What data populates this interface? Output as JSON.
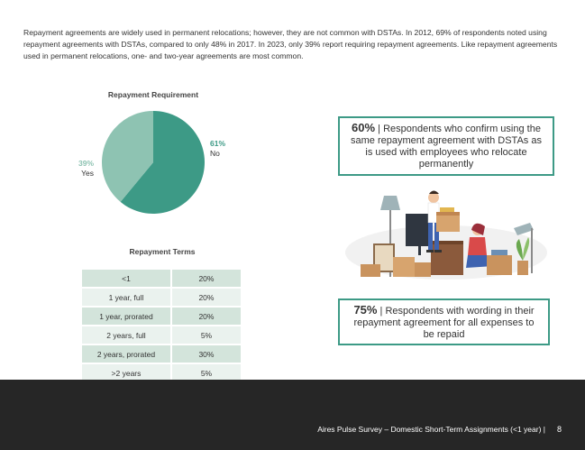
{
  "intro_text": "Repayment agreements are widely used in permanent relocations; however, they are not common with DSTAs. In 2012, 69% of respondents noted using repayment agreements with DSTAs, compared to only 48% in 2017. In 2023, only 39% report requiring repayment agreements. Like repayment agreements used in permanent relocations, one- and two-year agreements are most common.",
  "chart_data": [
    {
      "type": "pie",
      "title": "Repayment Requirement",
      "slices": [
        {
          "label": "No",
          "value": 61,
          "display": "61%",
          "color": "#3d9a86"
        },
        {
          "label": "Yes",
          "value": 39,
          "display": "39%",
          "color": "#8ec3b2"
        }
      ],
      "legend": "none"
    },
    {
      "type": "table",
      "title": "Repayment Terms",
      "rows": [
        {
          "term": "<1",
          "value": "20%"
        },
        {
          "term": "1 year, full",
          "value": "20%"
        },
        {
          "term": "1 year, prorated",
          "value": "20%"
        },
        {
          "term": "2 years, full",
          "value": "5%"
        },
        {
          "term": "2 years, prorated",
          "value": "30%"
        },
        {
          "term": ">2 years",
          "value": "5%"
        }
      ]
    }
  ],
  "callouts": [
    {
      "stat": "60%",
      "separator": "|",
      "text": "Respondents who confirm using the same repayment agreement with DSTAs as is used with employees who relocate permanently"
    },
    {
      "stat": "75%",
      "separator": "|",
      "text": "Respondents with wording in their repayment agreement for all expenses to be repaid"
    }
  ],
  "illustration": {
    "icon": "people-moving-boxes-illustration"
  },
  "footer": {
    "text": "Aires Pulse Survey – Domestic Short-Term Assignments (<1 year) |",
    "page": "8"
  },
  "colors": {
    "accent": "#3d9a86",
    "accent_light": "#8ec3b2",
    "footer_bg": "#262626",
    "row_dark": "#d3e4db",
    "row_light": "#eaf2ee"
  }
}
